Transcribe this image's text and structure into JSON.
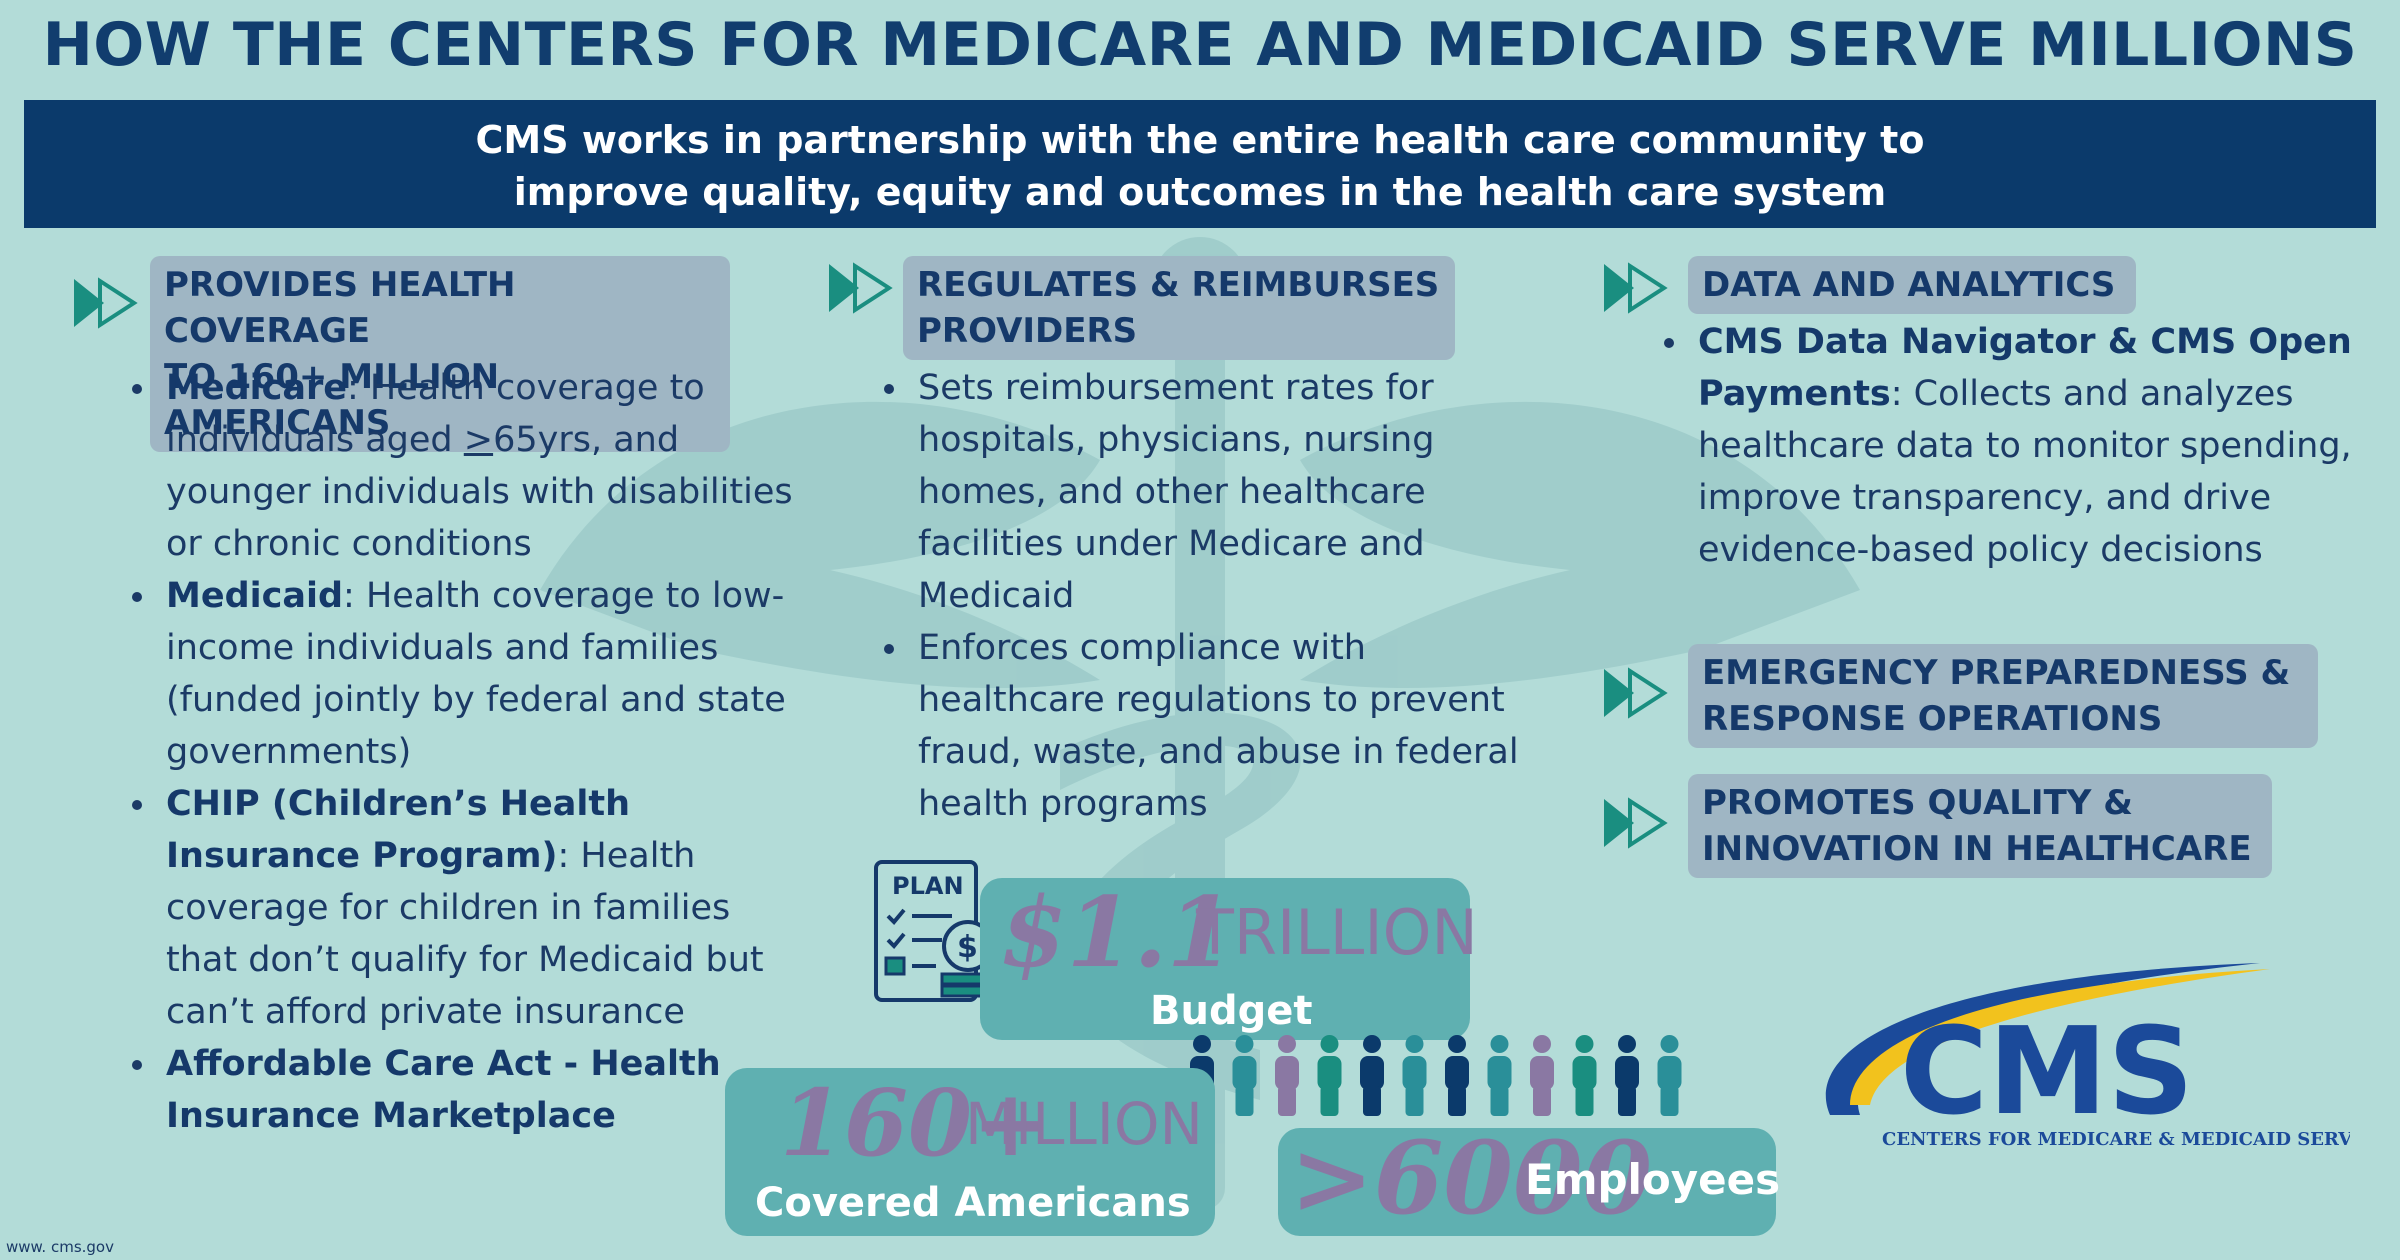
{
  "title": "HOW THE CENTERS FOR MEDICARE AND MEDICAID SERVE MILLIONS",
  "banner": {
    "line1": "CMS works in partnership with the entire health care community to",
    "line2": "improve  quality, equity and outcomes in the health care system"
  },
  "col1": {
    "heading_line1": "PROVIDES HEALTH COVERAGE",
    "heading_line2": "TO 160+ MILLION AMERICANS",
    "items": [
      {
        "bold": "Medicare",
        "pre": ": Health coverage to individuals aged ",
        "underline": ">",
        "post": "65yrs, and younger individuals with disabilities or chronic conditions"
      },
      {
        "bold": "Medicaid",
        "text": ": Health coverage to low-income individuals and families (funded jointly by federal and state governments)"
      },
      {
        "bold": "CHIP (Children’s Health Insurance Program)",
        "text": ": Health coverage for children in families that don’t qualify for Medicaid but can’t afford private insurance"
      },
      {
        "bold": "Affordable Care Act - Health Insurance Marketplace",
        "text": ""
      }
    ]
  },
  "col2": {
    "heading_line1": "REGULATES & REIMBURSES",
    "heading_line2": "PROVIDERS",
    "items": [
      {
        "text": "Sets reimbursement rates for hospitals, physicians, nursing homes, and other healthcare facilities under Medicare and Medicaid"
      },
      {
        "text": "Enforces compliance with healthcare regulations to prevent fraud, waste, and abuse in federal health programs"
      }
    ]
  },
  "col3": {
    "heading1": "DATA AND ANALYTICS",
    "item_bold": "CMS Data Navigator & CMS Open Payments",
    "item_text": ": Collects and analyzes healthcare data to monitor spending, improve transparency, and drive evidence-based policy decisions",
    "heading2_line1": "EMERGENCY PREPAREDNESS &",
    "heading2_line2": "RESPONSE OPERATIONS",
    "heading3_line1": "PROMOTES QUALITY &",
    "heading3_line2": "INNOVATION IN HEALTHCARE"
  },
  "stats": {
    "budget": {
      "value": "$1.1",
      "unit": "TRILLION",
      "label": "Budget"
    },
    "covered": {
      "value": "160+",
      "unit": "MILLION",
      "label": "Covered Americans"
    },
    "employees": {
      "value": ">6000",
      "label": "Employees"
    }
  },
  "plan_icon": {
    "label": "PLAN"
  },
  "logo": {
    "mark": "CMS",
    "subtitle": "CENTERS FOR MEDICARE & MEDICAID SERVICES"
  },
  "footer": "www. cms.gov",
  "colors": {
    "background": "#b3dcd8",
    "navy": "#0b3a6b",
    "pill": "#9fb6c4",
    "teal_box": "#5fb0b1",
    "arrow": "#1a8e80",
    "script_purple": "#8a78a3",
    "logo_yellow": "#f2c21d"
  },
  "people_colors": [
    "#0b3a6b",
    "#2a8f99",
    "#8a78a3",
    "#1a8e80",
    "#0b3a6b",
    "#2a8f99",
    "#0b3a6b",
    "#2a8f99",
    "#8a78a3",
    "#1a8e80",
    "#0b3a6b",
    "#2a8f99"
  ]
}
